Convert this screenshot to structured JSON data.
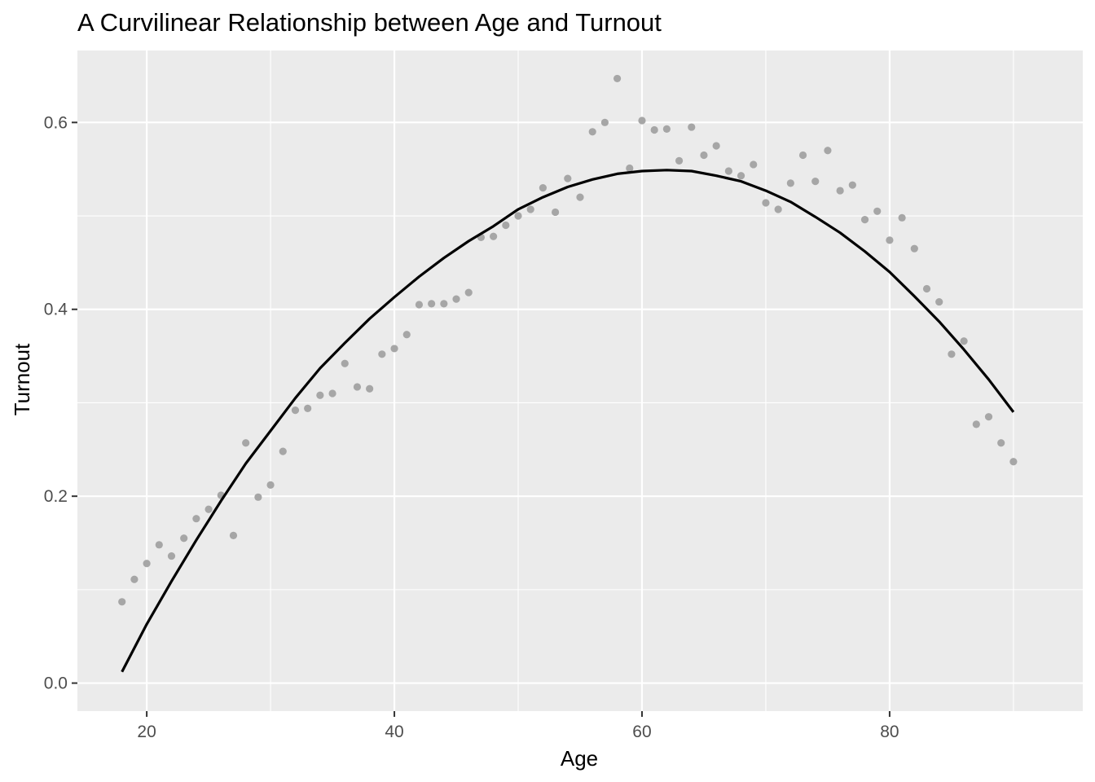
{
  "chart_data": {
    "type": "scatter",
    "title": "A Curvilinear Relationship between Age and Turnout",
    "xlabel": "Age",
    "ylabel": "Turnout",
    "xlim": [
      14.4,
      95.6
    ],
    "ylim": [
      -0.03,
      0.677
    ],
    "x_ticks": [
      20,
      40,
      60,
      80
    ],
    "x_tick_labels": [
      "20",
      "40",
      "60",
      "80"
    ],
    "y_ticks": [
      0.0,
      0.2,
      0.4,
      0.6
    ],
    "y_tick_labels": [
      "0.0",
      "0.2",
      "0.4",
      "0.6"
    ],
    "grid": true,
    "background": "#ebebeb",
    "point_color": "#a6a6a6",
    "line_color": "#000000",
    "points": {
      "x": [
        18,
        19,
        20,
        21,
        22,
        23,
        24,
        25,
        26,
        27,
        28,
        29,
        30,
        31,
        32,
        33,
        34,
        35,
        36,
        37,
        38,
        39,
        40,
        41,
        42,
        43,
        44,
        45,
        46,
        47,
        48,
        49,
        50,
        51,
        52,
        53,
        54,
        55,
        56,
        57,
        58,
        59,
        60,
        61,
        62,
        63,
        64,
        65,
        66,
        67,
        68,
        69,
        70,
        71,
        72,
        73,
        74,
        75,
        76,
        77,
        78,
        79,
        80,
        81,
        82,
        83,
        84,
        85,
        86,
        87,
        88,
        89,
        90
      ],
      "y": [
        0.087,
        0.111,
        0.128,
        0.148,
        0.136,
        0.155,
        0.176,
        0.186,
        0.201,
        0.158,
        0.257,
        0.199,
        0.212,
        0.248,
        0.292,
        0.294,
        0.308,
        0.31,
        0.342,
        0.317,
        0.315,
        0.352,
        0.358,
        0.373,
        0.405,
        0.406,
        0.406,
        0.411,
        0.418,
        0.477,
        0.478,
        0.49,
        0.5,
        0.507,
        0.53,
        0.504,
        0.54,
        0.52,
        0.59,
        0.6,
        0.647,
        0.551,
        0.602,
        0.592,
        0.593,
        0.559,
        0.595,
        0.565,
        0.575,
        0.548,
        0.543,
        0.555,
        0.514,
        0.507,
        0.535,
        0.565,
        0.537,
        0.57,
        0.527,
        0.533,
        0.496,
        0.505,
        0.474,
        0.498,
        0.465,
        0.422,
        0.408,
        0.352,
        0.366,
        0.277,
        0.285,
        0.257,
        0.237
      ]
    },
    "fit": {
      "x": [
        18,
        20,
        22,
        24,
        26,
        28,
        30,
        32,
        34,
        36,
        38,
        40,
        42,
        44,
        46,
        48,
        50,
        52,
        54,
        56,
        58,
        60,
        62,
        64,
        66,
        68,
        70,
        72,
        74,
        76,
        78,
        80,
        82,
        84,
        86,
        88,
        90
      ],
      "y": [
        0.012,
        0.063,
        0.109,
        0.153,
        0.195,
        0.235,
        0.27,
        0.305,
        0.337,
        0.364,
        0.39,
        0.413,
        0.435,
        0.455,
        0.473,
        0.489,
        0.507,
        0.52,
        0.531,
        0.539,
        0.545,
        0.548,
        0.549,
        0.548,
        0.543,
        0.537,
        0.527,
        0.515,
        0.499,
        0.482,
        0.462,
        0.44,
        0.414,
        0.387,
        0.357,
        0.325,
        0.29
      ]
    }
  }
}
